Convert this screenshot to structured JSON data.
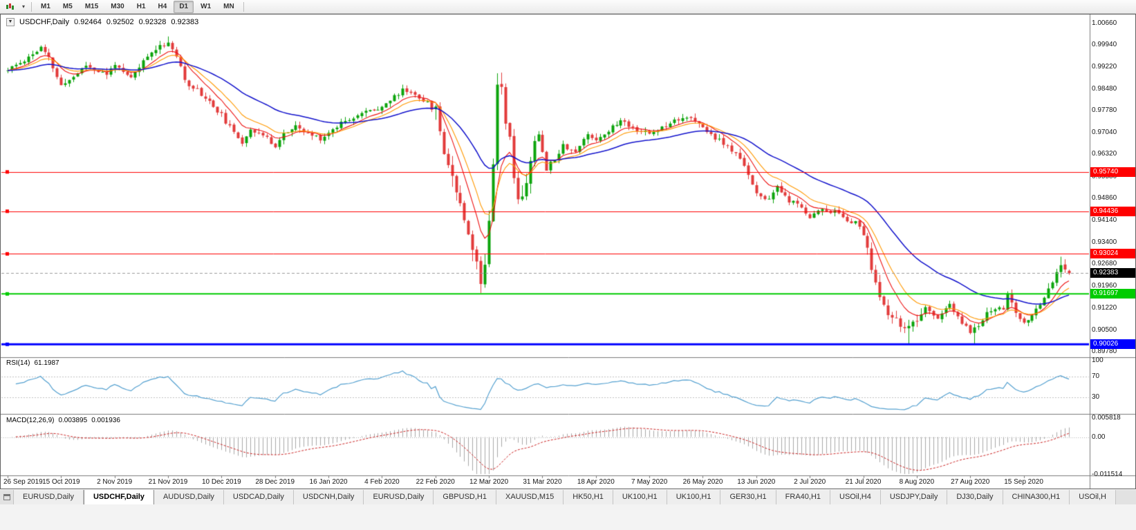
{
  "toolbar": {
    "timeframes": [
      "M1",
      "M5",
      "M15",
      "M30",
      "H1",
      "H4",
      "D1",
      "W1",
      "MN"
    ],
    "active_timeframe": "D1"
  },
  "chart": {
    "symbol": "USDCHF,Daily",
    "ohlc": {
      "open": "0.92464",
      "high": "0.92502",
      "low": "0.92328",
      "close": "0.92383"
    },
    "current_price": "0.92383",
    "hlines": [
      {
        "value": 0.9574,
        "label": "0.95740",
        "color": "#ff0000",
        "width": 1
      },
      {
        "value": 0.94436,
        "label": "0.94436",
        "color": "#ff0000",
        "width": 1
      },
      {
        "value": 0.93024,
        "label": "0.93024",
        "color": "#ff0000",
        "width": 1
      },
      {
        "value": 0.91697,
        "label": "0.91697",
        "color": "#00cc00",
        "width": 2
      },
      {
        "value": 0.90026,
        "label": "0.90026",
        "color": "#0000ff",
        "width": 3
      }
    ]
  },
  "rsi": {
    "name": "RSI(14)",
    "value": "61.1987",
    "scale_labels": [
      "100",
      "70",
      "30"
    ],
    "dotted_levels": [
      70,
      30
    ],
    "line_color": "#53a0d0"
  },
  "macd": {
    "name": "MACD(12,26,9)",
    "main_value": "0.003895",
    "signal_value": "0.001936",
    "scale_labels": [
      "0.005818",
      "0.00",
      "-0.011514"
    ]
  },
  "tabs": [
    {
      "label": "EURUSD,Daily",
      "active": false
    },
    {
      "label": "USDCHF,Daily",
      "active": true
    },
    {
      "label": "AUDUSD,Daily",
      "active": false
    },
    {
      "label": "USDCAD,Daily",
      "active": false
    },
    {
      "label": "USDCNH,Daily",
      "active": false
    },
    {
      "label": "EURUSD,Daily",
      "active": false
    },
    {
      "label": "GBPUSD,H1",
      "active": false
    },
    {
      "label": "XAUUSD,M15",
      "active": false
    },
    {
      "label": "HK50,H1",
      "active": false
    },
    {
      "label": "UK100,H1",
      "active": false
    },
    {
      "label": "UK100,H1",
      "active": false
    },
    {
      "label": "GER30,H1",
      "active": false
    },
    {
      "label": "FRA40,H1",
      "active": false
    },
    {
      "label": "USOil,H4",
      "active": false
    },
    {
      "label": "USDJPY,Daily",
      "active": false
    },
    {
      "label": "DJ30,Daily",
      "active": false
    },
    {
      "label": "CHINA300,H1",
      "active": false
    },
    {
      "label": "USOil,H",
      "active": false
    }
  ],
  "chart_data": {
    "type": "candlestick",
    "symbol": "USDCHF",
    "period": "Daily",
    "num_candles": 259,
    "candles_per_x_label": 13,
    "x_labels": [
      "26 Sep 2019",
      "15 Oct 2019",
      "2 Nov 2019",
      "21 Nov 2019",
      "10 Dec 2019",
      "28 Dec 2019",
      "16 Jan 2020",
      "4 Feb 2020",
      "22 Feb 2020",
      "12 Mar 2020",
      "31 Mar 2020",
      "18 Apr 2020",
      "7 May 2020",
      "26 May 2020",
      "13 Jun 2020",
      "2 Jul 2020",
      "21 Jul 2020",
      "8 Aug 2020",
      "27 Aug 2020",
      "15 Sep 2020"
    ],
    "y_ticks": [
      "1.00660",
      "0.99940",
      "0.99220",
      "0.98480",
      "0.97780",
      "0.97040",
      "0.96320",
      "0.95580",
      "0.94860",
      "0.94140",
      "0.93400",
      "0.92680",
      "0.91960",
      "0.91220",
      "0.90500",
      "0.89780"
    ],
    "y_range": [
      0.8964,
      1.0084
    ],
    "last_candle": {
      "open": 0.92464,
      "high": 0.92502,
      "low": 0.92328,
      "close": 0.92383
    },
    "price_anchors": [
      [
        0,
        0.991
      ],
      [
        4,
        0.9945
      ],
      [
        8,
        0.9985
      ],
      [
        10,
        0.995
      ],
      [
        13,
        0.9858
      ],
      [
        16,
        0.989
      ],
      [
        19,
        0.9928
      ],
      [
        22,
        0.9908
      ],
      [
        24,
        0.9895
      ],
      [
        26,
        0.9935
      ],
      [
        28,
        0.9898
      ],
      [
        30,
        0.9885
      ],
      [
        33,
        0.994
      ],
      [
        36,
        0.9985
      ],
      [
        39,
        1.0004
      ],
      [
        41,
        0.9958
      ],
      [
        43,
        0.9876
      ],
      [
        46,
        0.9846
      ],
      [
        49,
        0.9806
      ],
      [
        52,
        0.9762
      ],
      [
        55,
        0.97
      ],
      [
        57,
        0.9674
      ],
      [
        59,
        0.9718
      ],
      [
        62,
        0.9694
      ],
      [
        65,
        0.9662
      ],
      [
        67,
        0.97
      ],
      [
        70,
        0.9722
      ],
      [
        73,
        0.97
      ],
      [
        76,
        0.9686
      ],
      [
        78,
        0.9702
      ],
      [
        81,
        0.974
      ],
      [
        84,
        0.9758
      ],
      [
        87,
        0.9772
      ],
      [
        91,
        0.9792
      ],
      [
        94,
        0.9822
      ],
      [
        96,
        0.9846
      ],
      [
        98,
        0.9838
      ],
      [
        100,
        0.9824
      ],
      [
        102,
        0.98
      ],
      [
        104,
        0.9776
      ],
      [
        106,
        0.965
      ],
      [
        108,
        0.956
      ],
      [
        110,
        0.9478
      ],
      [
        112,
        0.9378
      ],
      [
        114,
        0.9268
      ],
      [
        115,
        0.9206
      ],
      [
        116,
        0.928
      ],
      [
        117,
        0.943
      ],
      [
        118,
        0.962
      ],
      [
        119,
        0.9856
      ],
      [
        120,
        0.9868
      ],
      [
        121,
        0.975
      ],
      [
        122,
        0.9678
      ],
      [
        123,
        0.9558
      ],
      [
        124,
        0.9498
      ],
      [
        125,
        0.9476
      ],
      [
        126,
        0.9548
      ],
      [
        127,
        0.962
      ],
      [
        129,
        0.97
      ],
      [
        131,
        0.9586
      ],
      [
        133,
        0.962
      ],
      [
        135,
        0.9664
      ],
      [
        138,
        0.964
      ],
      [
        141,
        0.97
      ],
      [
        143,
        0.9682
      ],
      [
        146,
        0.9712
      ],
      [
        149,
        0.9744
      ],
      [
        152,
        0.9722
      ],
      [
        156,
        0.97
      ],
      [
        159,
        0.9722
      ],
      [
        162,
        0.9748
      ],
      [
        165,
        0.9758
      ],
      [
        169,
        0.972
      ],
      [
        172,
        0.9688
      ],
      [
        176,
        0.9645
      ],
      [
        179,
        0.96
      ],
      [
        182,
        0.9502
      ],
      [
        184,
        0.9476
      ],
      [
        187,
        0.952
      ],
      [
        190,
        0.9478
      ],
      [
        193,
        0.9455
      ],
      [
        195,
        0.9426
      ],
      [
        198,
        0.9452
      ],
      [
        201,
        0.944
      ],
      [
        204,
        0.9418
      ],
      [
        207,
        0.9398
      ],
      [
        208,
        0.9365
      ],
      [
        210,
        0.9256
      ],
      [
        212,
        0.9158
      ],
      [
        214,
        0.9094
      ],
      [
        217,
        0.9072
      ],
      [
        219,
        0.9052
      ],
      [
        221,
        0.9082
      ],
      [
        223,
        0.9118
      ],
      [
        226,
        0.9092
      ],
      [
        229,
        0.913
      ],
      [
        232,
        0.9072
      ],
      [
        234,
        0.9046
      ],
      [
        236,
        0.9062
      ],
      [
        238,
        0.911
      ],
      [
        240,
        0.9122
      ],
      [
        242,
        0.9118
      ],
      [
        243,
        0.9178
      ],
      [
        245,
        0.91
      ],
      [
        247,
        0.9074
      ],
      [
        249,
        0.9092
      ],
      [
        251,
        0.914
      ],
      [
        253,
        0.919
      ],
      [
        255,
        0.9234
      ],
      [
        256,
        0.9268
      ],
      [
        257,
        0.9256
      ],
      [
        258,
        0.9238
      ]
    ],
    "wick_spikes": [
      {
        "index": 39,
        "high": 1.0023
      },
      {
        "index": 115,
        "low": 0.9182
      },
      {
        "index": 119,
        "high": 0.9901
      },
      {
        "index": 219,
        "low": 0.9002
      },
      {
        "index": 235,
        "low": 0.9004
      },
      {
        "index": 256,
        "high": 0.9293
      }
    ],
    "volatility_zones": [
      {
        "from": 104,
        "to": 128,
        "factor": 2.6
      },
      {
        "from": 209,
        "to": 222,
        "factor": 1.6
      },
      {
        "from": 252,
        "to": 258,
        "factor": 1.3
      }
    ],
    "moving_averages": [
      {
        "period": 8,
        "color": "#ee1111",
        "width": 1.1
      },
      {
        "period": 13,
        "color": "#ff9900",
        "width": 1.1
      },
      {
        "period": 34,
        "color": "#1111cc",
        "width": 1.5
      }
    ],
    "horizontal_levels": [
      0.9574,
      0.94436,
      0.93024,
      0.91697,
      0.90026
    ],
    "indicators": [
      {
        "type": "RSI",
        "period": 14,
        "current": 61.1987,
        "levels": [
          100,
          70,
          30
        ]
      },
      {
        "type": "MACD",
        "fast": 12,
        "slow": 26,
        "signal": 9,
        "main": 0.003895,
        "signal_value": 0.001936,
        "scale": [
          0.005818,
          0.0,
          -0.011514
        ]
      }
    ],
    "candle_colors": {
      "up": "#0ca40c",
      "down": "#e23b3b"
    }
  }
}
